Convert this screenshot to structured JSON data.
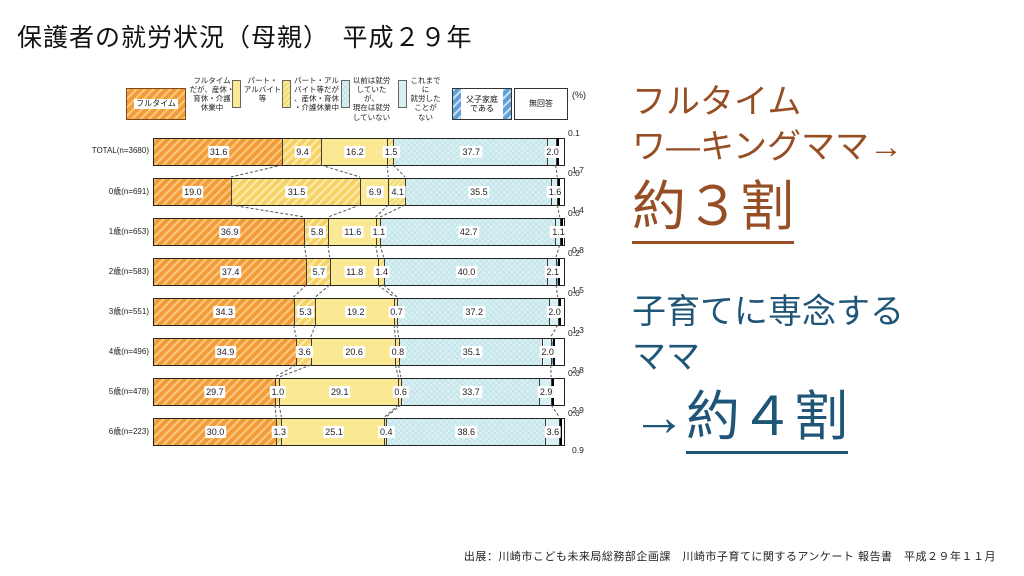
{
  "slide": {
    "title": "保護者の就労状況（母親）　平成２９年",
    "source": "出展：川崎市こども未来局総務部企画課　川崎市子育てに関するアンケート 報告書　平成２９年１１月"
  },
  "annotations": {
    "fulltime": {
      "line1": "フルタイム",
      "line2": "ワ―キングママ→",
      "highlight": "約３割",
      "color": "#964E24"
    },
    "stayhome": {
      "line1": "子育てに専念する",
      "line2": "ママ",
      "arrow": "→",
      "highlight": "約４割",
      "color": "#1F5576"
    }
  },
  "chart_data": {
    "type": "bar",
    "variant": "horizontal-stacked",
    "title": "保護者の就労状況（母親）　平成２９年",
    "unit": "%",
    "unit_label": "(%)",
    "xlim": [
      0,
      100
    ],
    "legend_position": "top",
    "grid": false,
    "series": [
      "フルタイム",
      "フルタイムだが、産休・育休・介護休業中",
      "パート・アルバイト等",
      "パート・アルバイト等だが、産休・育休・介護休業中",
      "以前は就労していたが、現在は就労していない",
      "これまでに就労したことがない",
      "父子家庭である",
      "無回答"
    ],
    "legend_display": [
      {
        "name": "fulltime",
        "style": "box",
        "seg": 0,
        "label": "フルタイム"
      },
      {
        "name": "fulltime-on-leave",
        "style": "text",
        "seg": 1,
        "label": "フルタイム\nだが、産休・\n育休・介護\n休業中"
      },
      {
        "name": "part-time",
        "style": "swatch",
        "seg": 2,
        "label": "パート・\nアルバイト\n等"
      },
      {
        "name": "part-time-on-leave",
        "style": "swatch",
        "seg": 3,
        "label": "パート・アル\nバイト等だが\n、産休・育休\n・介護休業中"
      },
      {
        "name": "previously-employed",
        "style": "swatch",
        "seg": 4,
        "label": "以前は就労\nしていたが、\n現在は就労\nしていない"
      },
      {
        "name": "never-employed",
        "style": "swatch",
        "seg": 5,
        "label": "これまでに\n就労した\nことが\nない"
      },
      {
        "name": "single-father",
        "style": "box2",
        "seg": 6,
        "label": "父子家庭\nである"
      },
      {
        "name": "no-answer",
        "style": "boxw",
        "seg": 7,
        "label": "無回答"
      },
      {
        "name": "unit-percent",
        "style": "plain",
        "label": "(%)"
      }
    ],
    "categories": [
      "TOTAL(n=3680)",
      "0歳(n=691)",
      "1歳(n=653)",
      "2歳(n=583)",
      "3歳(n=551)",
      "4歳(n=496)",
      "5歳(n=478)",
      "6歳(n=223)"
    ],
    "values": [
      [
        31.6,
        9.4,
        16.2,
        1.5,
        37.7,
        2.0,
        0.1,
        1.7
      ],
      [
        19.0,
        31.5,
        6.9,
        4.1,
        35.5,
        1.6,
        0.0,
        1.4
      ],
      [
        36.9,
        5.8,
        11.6,
        1.1,
        42.7,
        1.1,
        0.0,
        0.8
      ],
      [
        37.4,
        5.7,
        11.8,
        1.4,
        40.0,
        2.1,
        0.2,
        1.5
      ],
      [
        34.3,
        5.3,
        19.2,
        0.7,
        37.2,
        2.0,
        0.0,
        1.3
      ],
      [
        34.9,
        3.6,
        20.6,
        0.8,
        35.1,
        2.0,
        0.2,
        2.8
      ],
      [
        29.7,
        1.0,
        29.1,
        0.6,
        33.7,
        2.9,
        0.0,
        2.9
      ],
      [
        30.0,
        1.3,
        25.1,
        0.4,
        38.6,
        3.6,
        0.0,
        0.9
      ]
    ],
    "palette": [
      {
        "base": "#F29B38",
        "stripe": "#F9C87F",
        "pattern": "diag"
      },
      {
        "base": "#F6D163",
        "stripe": "#FBEAAE",
        "pattern": "diag"
      },
      {
        "base": "#FAE893",
        "pattern": "solid"
      },
      {
        "base": "#FAE893",
        "stripe": "#EDD878",
        "pattern": "diag-fine"
      },
      {
        "base": "#D9F0F3",
        "stripe": "#C3E4EA",
        "pattern": "cross"
      },
      {
        "base": "#D9F0F3",
        "pattern": "solid"
      },
      {
        "base": "#5E9FD8",
        "stripe": "#C7DFF3",
        "pattern": "diag"
      },
      {
        "base": "#FFFFFF",
        "pattern": "solid"
      }
    ]
  }
}
